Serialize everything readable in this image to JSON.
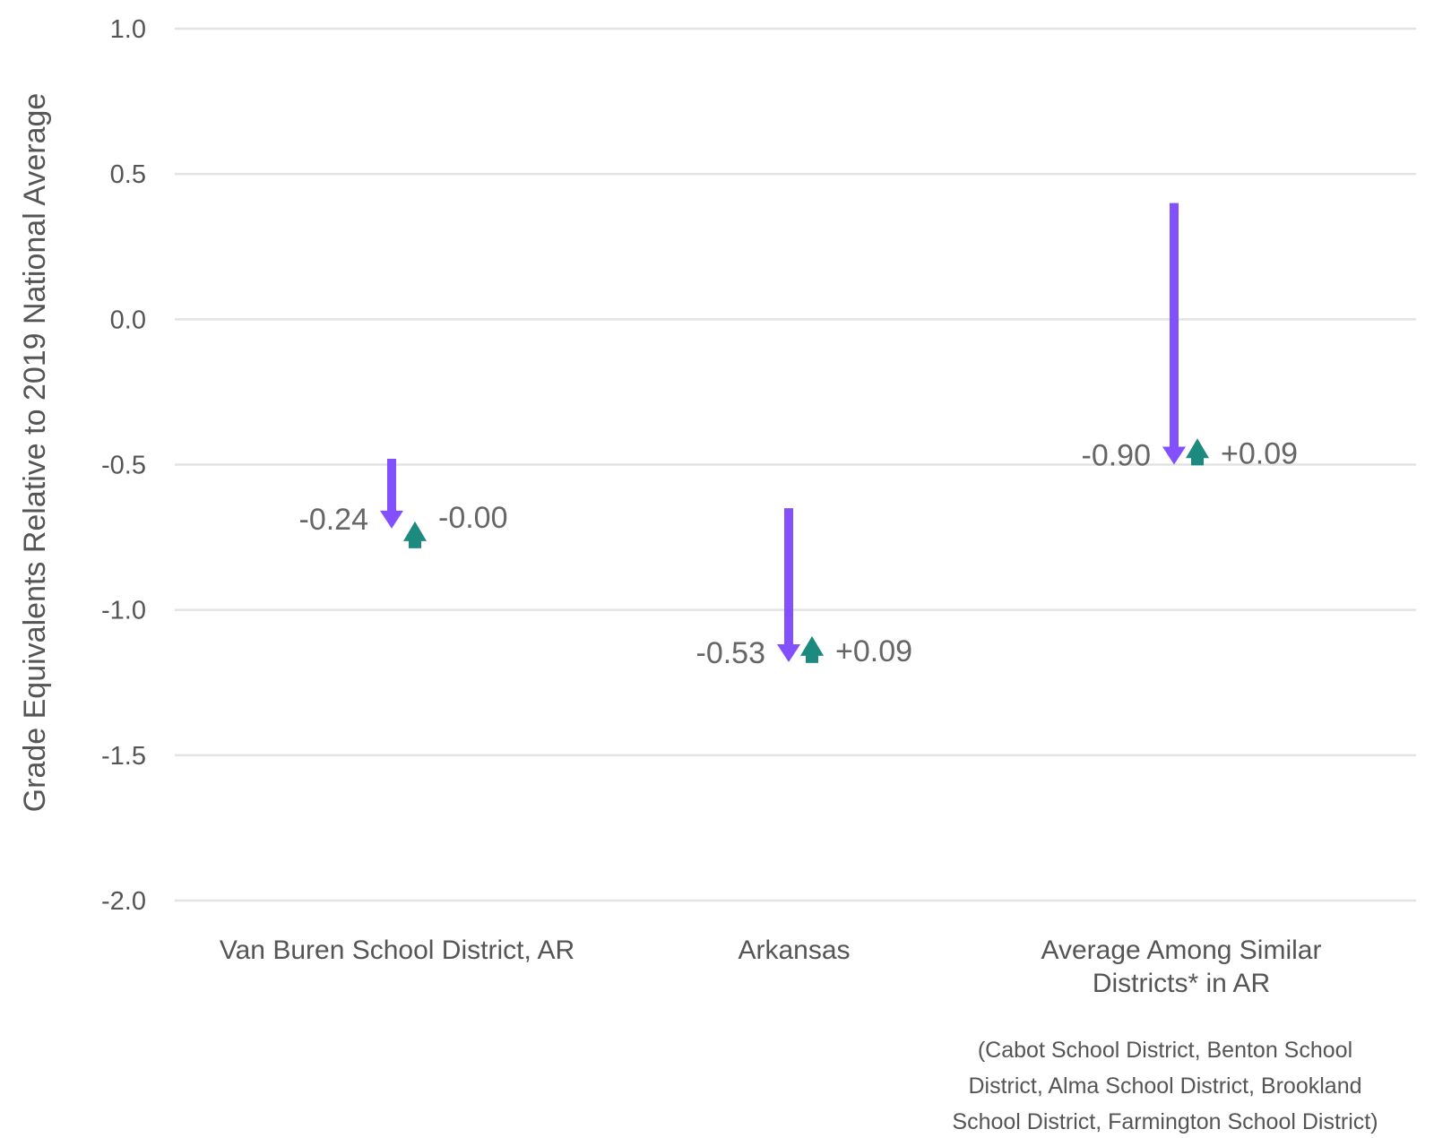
{
  "chart_data": {
    "type": "arrow",
    "ylabel": "Grade Equivalents Relative to 2019 National Average",
    "ylim": [
      -2.0,
      1.0
    ],
    "yticks": [
      "1.0",
      "0.5",
      "0.0",
      "-0.5",
      "-1.0",
      "-1.5",
      "-2.0"
    ],
    "yticks_values": [
      1.0,
      0.5,
      0.0,
      -0.5,
      -1.0,
      -1.5,
      -2.0
    ],
    "grid": true,
    "categories": [
      {
        "lines": [
          "Van Buren School District, AR"
        ],
        "start": -0.48,
        "after_drop": -0.72,
        "after_change": -0.72,
        "drop_label": "-0.24",
        "change_label": "-0.00"
      },
      {
        "lines": [
          "Arkansas"
        ],
        "start": -0.65,
        "after_drop": -1.18,
        "after_change": -1.09,
        "drop_label": "-0.53",
        "change_label": "+0.09"
      },
      {
        "lines": [
          "Average Among Similar",
          "Districts* in AR"
        ],
        "start": 0.4,
        "after_drop": -0.5,
        "after_change": -0.41,
        "drop_label": "-0.90",
        "change_label": "+0.09"
      }
    ],
    "footnote": [
      "(Cabot School District, Benton School",
      "District, Alma School District, Brookland",
      "School District, Farmington School District)"
    ],
    "colors": {
      "drop": "#8250ff",
      "change": "#1d8a80",
      "grid": "#e3e3e3",
      "text": "#555555"
    }
  }
}
